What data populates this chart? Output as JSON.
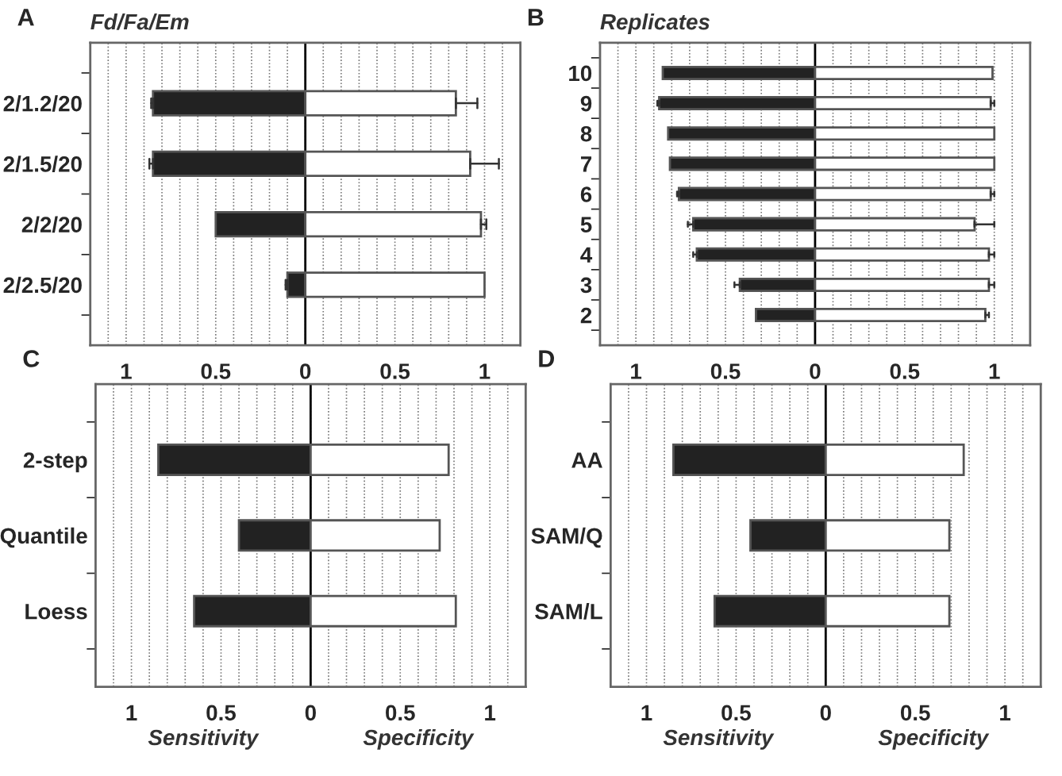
{
  "chart_data": [
    {
      "type": "bar",
      "orientation": "horizontal",
      "stacked": true,
      "title": "Fd/Fa/Em",
      "annotations": [
        "A"
      ],
      "categories": [
        "2/1.2/20",
        "2/1.5/20",
        "2/2/20",
        "2/2.5/20"
      ],
      "series": [
        {
          "color": "#222222",
          "values": [
            -0.85,
            -0.85,
            -0.5,
            -0.1
          ],
          "errors": [
            [
              -0.86,
              -0.85
            ],
            [
              -0.87,
              -0.85
            ],
            null,
            [
              -0.11,
              -0.1
            ]
          ]
        },
        {
          "color": "#ffffff",
          "values": [
            0.84,
            0.92,
            0.98,
            1.0
          ],
          "errors": [
            [
              0.84,
              0.96
            ],
            [
              0.92,
              1.08
            ],
            [
              0.98,
              1.01
            ],
            null
          ]
        }
      ],
      "xlim": [
        -1.2,
        1.2
      ],
      "xticks": [
        {
          "value": -1.1,
          "label": null
        },
        {
          "value": -1,
          "label": "1"
        },
        {
          "value": -0.9,
          "label": null
        },
        {
          "value": -0.8,
          "label": null
        },
        {
          "value": -0.7,
          "label": null
        },
        {
          "value": -0.6,
          "label": null
        },
        {
          "value": -0.5,
          "label": "0.5"
        },
        {
          "value": -0.4,
          "label": null
        },
        {
          "value": -0.3,
          "label": null
        },
        {
          "value": -0.2,
          "label": null
        },
        {
          "value": -0.1,
          "label": null
        },
        0,
        {
          "value": 0.1,
          "label": null
        },
        {
          "value": 0.2,
          "label": null
        },
        {
          "value": 0.3,
          "label": null
        },
        {
          "value": 0.4,
          "label": null
        },
        0.5,
        {
          "value": 0.6,
          "label": null
        },
        {
          "value": 0.7,
          "label": null
        },
        {
          "value": 0.8,
          "label": null
        },
        {
          "value": 0.9,
          "label": null
        },
        1,
        {
          "value": 1.1,
          "label": null
        }
      ],
      "ref_lines": [
        {
          "axis": "x",
          "value": 0,
          "color": "#000000"
        }
      ],
      "grid": "x"
    },
    {
      "type": "bar",
      "orientation": "horizontal",
      "stacked": true,
      "title": "Replicates",
      "annotations": [
        "B"
      ],
      "categories": [
        "10",
        "9",
        "8",
        "7",
        "6",
        "5",
        "4",
        "3",
        "2"
      ],
      "series": [
        {
          "color": "#222222",
          "values": [
            -0.85,
            -0.87,
            -0.82,
            -0.81,
            -0.76,
            -0.68,
            -0.66,
            -0.42,
            -0.33
          ],
          "errors": [
            null,
            [
              -0.88,
              -0.87
            ],
            null,
            null,
            [
              -0.77,
              -0.76
            ],
            [
              -0.71,
              -0.68
            ],
            [
              -0.68,
              -0.66
            ],
            [
              -0.45,
              -0.42
            ],
            null
          ]
        },
        {
          "color": "#ffffff",
          "values": [
            0.99,
            0.98,
            1.0,
            1.0,
            0.98,
            0.89,
            0.97,
            0.97,
            0.95
          ],
          "errors": [
            null,
            [
              0.98,
              1.0
            ],
            null,
            null,
            [
              0.98,
              1.0
            ],
            [
              0.89,
              1.0
            ],
            [
              0.97,
              1.0
            ],
            [
              0.97,
              1.0
            ],
            [
              0.95,
              0.97
            ]
          ]
        }
      ],
      "xlim": [
        -1.2,
        1.2
      ],
      "xticks": [
        {
          "value": -1.1,
          "label": null
        },
        {
          "value": -1,
          "label": "1"
        },
        {
          "value": -0.9,
          "label": null
        },
        {
          "value": -0.8,
          "label": null
        },
        {
          "value": -0.7,
          "label": null
        },
        {
          "value": -0.6,
          "label": null
        },
        {
          "value": -0.5,
          "label": "0.5"
        },
        {
          "value": -0.4,
          "label": null
        },
        {
          "value": -0.3,
          "label": null
        },
        {
          "value": -0.2,
          "label": null
        },
        {
          "value": -0.1,
          "label": null
        },
        0,
        {
          "value": 0.1,
          "label": null
        },
        {
          "value": 0.2,
          "label": null
        },
        {
          "value": 0.3,
          "label": null
        },
        {
          "value": 0.4,
          "label": null
        },
        0.5,
        {
          "value": 0.6,
          "label": null
        },
        {
          "value": 0.7,
          "label": null
        },
        {
          "value": 0.8,
          "label": null
        },
        {
          "value": 0.9,
          "label": null
        },
        1,
        {
          "value": 1.1,
          "label": null
        }
      ],
      "ref_lines": [
        {
          "axis": "x",
          "value": 0,
          "color": "#000000"
        }
      ],
      "grid": "x"
    },
    {
      "type": "bar",
      "orientation": "horizontal",
      "stacked": true,
      "annotations": [
        "C",
        "Sensitivity",
        "Specificity"
      ],
      "categories": [
        "2-step",
        "Quantile",
        "Loess"
      ],
      "series": [
        {
          "color": "#222222",
          "values": [
            -0.85,
            -0.4,
            -0.65
          ]
        },
        {
          "color": "#ffffff",
          "values": [
            0.77,
            0.72,
            0.81
          ]
        }
      ],
      "xlim": [
        -1.2,
        1.2
      ],
      "xticks": [
        {
          "value": -1.1,
          "label": null
        },
        {
          "value": -1,
          "label": "1"
        },
        {
          "value": -0.9,
          "label": null
        },
        {
          "value": -0.8,
          "label": null
        },
        {
          "value": -0.7,
          "label": null
        },
        {
          "value": -0.6,
          "label": null
        },
        {
          "value": -0.5,
          "label": "0.5"
        },
        {
          "value": -0.4,
          "label": null
        },
        {
          "value": -0.3,
          "label": null
        },
        {
          "value": -0.2,
          "label": null
        },
        {
          "value": -0.1,
          "label": null
        },
        0,
        {
          "value": 0.1,
          "label": null
        },
        {
          "value": 0.2,
          "label": null
        },
        {
          "value": 0.3,
          "label": null
        },
        {
          "value": 0.4,
          "label": null
        },
        0.5,
        {
          "value": 0.6,
          "label": null
        },
        {
          "value": 0.7,
          "label": null
        },
        {
          "value": 0.8,
          "label": null
        },
        {
          "value": 0.9,
          "label": null
        },
        1,
        {
          "value": 1.1,
          "label": null
        }
      ],
      "ref_lines": [
        {
          "axis": "x",
          "value": 0,
          "color": "#000000"
        }
      ],
      "grid": "x"
    },
    {
      "type": "bar",
      "orientation": "horizontal",
      "stacked": true,
      "annotations": [
        "D",
        "Sensitivity",
        "Specificity"
      ],
      "categories": [
        "AA",
        "SAM/Q",
        "SAM/L"
      ],
      "series": [
        {
          "color": "#222222",
          "values": [
            -0.85,
            -0.42,
            -0.62
          ]
        },
        {
          "color": "#ffffff",
          "values": [
            0.77,
            0.69,
            0.69
          ]
        }
      ],
      "xlim": [
        -1.2,
        1.2
      ],
      "xticks": [
        {
          "value": -1.1,
          "label": null
        },
        {
          "value": -1,
          "label": "1"
        },
        {
          "value": -0.9,
          "label": null
        },
        {
          "value": -0.8,
          "label": null
        },
        {
          "value": -0.7,
          "label": null
        },
        {
          "value": -0.6,
          "label": null
        },
        {
          "value": -0.5,
          "label": "0.5"
        },
        {
          "value": -0.4,
          "label": null
        },
        {
          "value": -0.3,
          "label": null
        },
        {
          "value": -0.2,
          "label": null
        },
        {
          "value": -0.1,
          "label": null
        },
        0,
        {
          "value": 0.1,
          "label": null
        },
        {
          "value": 0.2,
          "label": null
        },
        {
          "value": 0.3,
          "label": null
        },
        {
          "value": 0.4,
          "label": null
        },
        0.5,
        {
          "value": 0.6,
          "label": null
        },
        {
          "value": 0.7,
          "label": null
        },
        {
          "value": 0.8,
          "label": null
        },
        {
          "value": 0.9,
          "label": null
        },
        1,
        {
          "value": 1.1,
          "label": null
        }
      ],
      "ref_lines": [
        {
          "axis": "x",
          "value": 0,
          "color": "#000000"
        }
      ],
      "grid": "x"
    }
  ]
}
